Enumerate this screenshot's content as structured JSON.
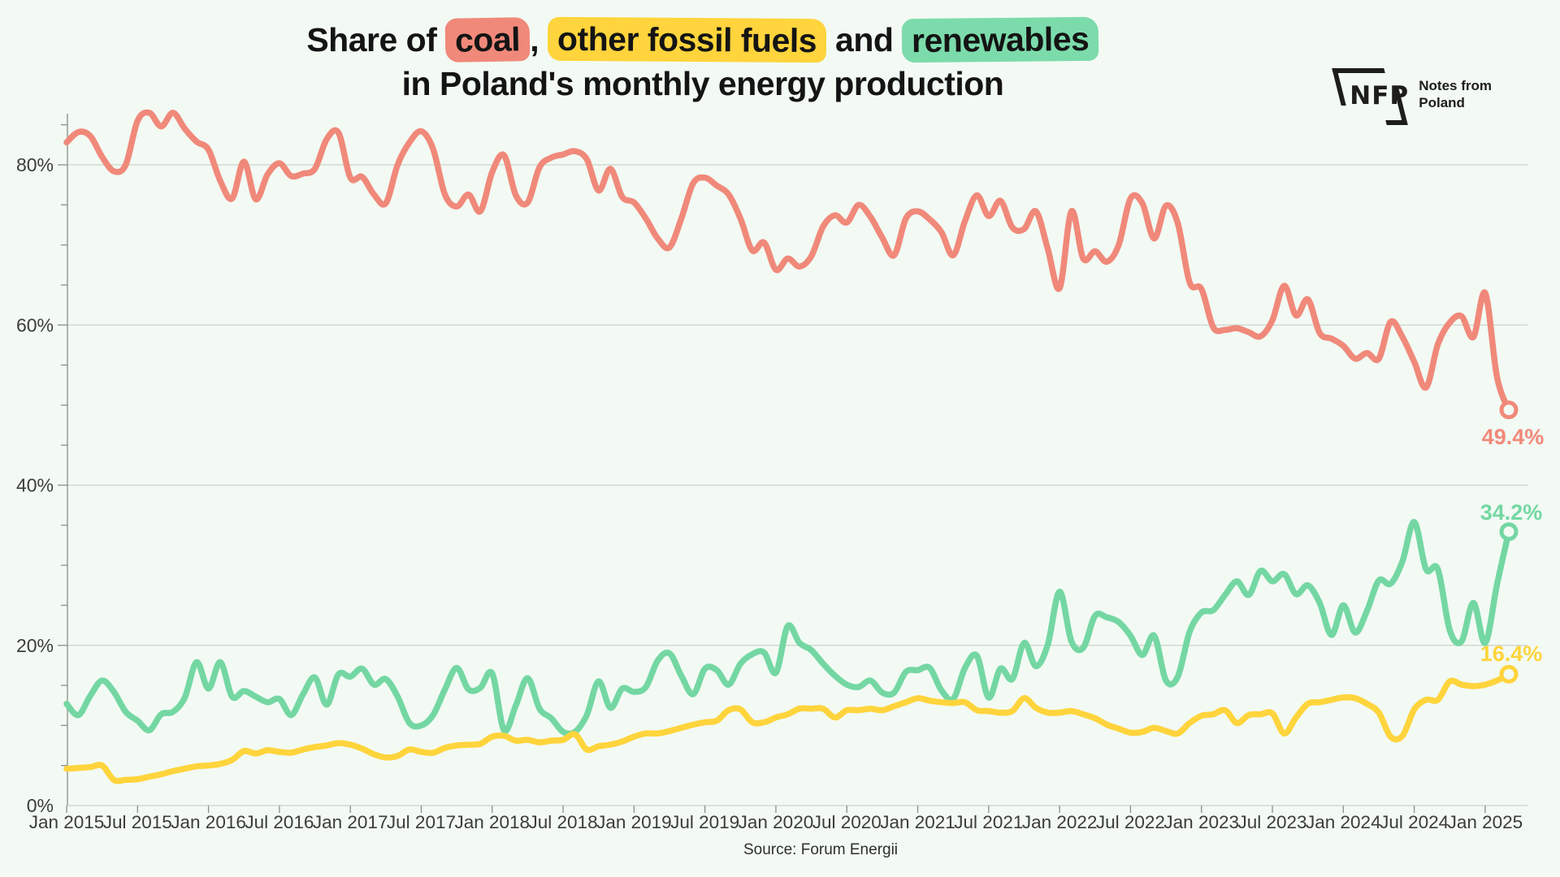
{
  "title": {
    "prefix": "Share of ",
    "coal": "coal",
    "comma": ", ",
    "fossil": "other fossil fuels",
    "and": " and ",
    "renewables": "renewables",
    "line2": "in Poland's monthly energy production"
  },
  "logo": {
    "abbr": "NFP",
    "line1": "Notes from",
    "line2": "Poland"
  },
  "source": "Source: Forum Energii",
  "colors": {
    "background": "#f2faf3",
    "gridline": "#cdd3cd",
    "axis": "#8a8f8a",
    "tick_text": "#3c3c3c",
    "coal": "#f0897a",
    "other_fossil": "#ffd43c",
    "renewables": "#74d7a3",
    "title_text": "#141414"
  },
  "axes": {
    "y_labels": [
      "0%",
      "20%",
      "40%",
      "60%",
      "80%"
    ],
    "y_label_values": [
      0,
      20,
      40,
      60,
      80
    ],
    "y_minor_step": 5,
    "y_axis_max": 85,
    "x_labels": [
      "Jan 2015",
      "Jul 2015",
      "Jan 2016",
      "Jul 2016",
      "Jan 2017",
      "Jul 2017",
      "Jan 2018",
      "Jul 2018",
      "Jan 2019",
      "Jul 2019",
      "Jan 2020",
      "Jul 2020",
      "Jan 2021",
      "Jul 2021",
      "Jan 2022",
      "Jul 2022",
      "Jan 2023",
      "Jul 2023",
      "Jan 2024",
      "Jul 2024",
      "Jan 2025"
    ],
    "x_label_month_step": 6
  },
  "chart_data": {
    "type": "line",
    "title": "Share of coal, other fossil fuels and renewables in Poland's monthly energy production",
    "x_unit": "month",
    "x_start": "Jan 2015",
    "x_end": "Mar 2025",
    "ylim": [
      0,
      85
    ],
    "grid": "horizontal",
    "legend_position": "title-highlights",
    "series": [
      {
        "name": "coal",
        "color": "#f0897a",
        "end_label": "49.4%",
        "values": [
          82.8,
          84.1,
          83.6,
          81.0,
          79.2,
          80.0,
          85.5,
          86.5,
          84.8,
          86.5,
          84.5,
          82.9,
          81.9,
          78.0,
          75.8,
          80.4,
          75.7,
          78.8,
          80.2,
          78.6,
          78.9,
          79.5,
          83.2,
          84.0,
          78.4,
          78.5,
          76.3,
          75.2,
          80.0,
          82.8,
          84.2,
          82.0,
          76.3,
          74.8,
          76.3,
          74.2,
          79.1,
          81.2,
          76.2,
          75.3,
          79.7,
          80.9,
          81.3,
          81.7,
          80.7,
          76.8,
          79.5,
          76.0,
          75.3,
          73.3,
          70.8,
          69.7,
          73.3,
          77.7,
          78.4,
          77.4,
          76.3,
          73.3,
          69.3,
          70.3,
          66.9,
          68.3,
          67.3,
          68.6,
          72.3,
          73.7,
          72.8,
          75.0,
          73.5,
          70.9,
          68.7,
          73.3,
          74.2,
          73.2,
          71.6,
          68.7,
          73.0,
          76.2,
          73.6,
          75.5,
          72.2,
          72.0,
          74.2,
          69.5,
          64.6,
          74.2,
          68.3,
          69.2,
          67.9,
          70.0,
          75.8,
          75.2,
          70.8,
          74.9,
          72.7,
          65.3,
          64.5,
          59.7,
          59.4,
          59.6,
          59.1,
          58.6,
          60.6,
          64.9,
          61.2,
          63.2,
          59.0,
          58.3,
          57.4,
          55.8,
          56.5,
          55.8,
          60.4,
          58.5,
          55.4,
          52.2,
          57.6,
          60.3,
          61.1,
          58.5,
          64.0,
          53.5,
          49.4
        ]
      },
      {
        "name": "other fossil fuels",
        "color": "#ffd43c",
        "end_label": "16.4%",
        "values": [
          4.6,
          4.7,
          4.8,
          5.0,
          3.2,
          3.2,
          3.3,
          3.6,
          3.9,
          4.3,
          4.6,
          4.9,
          5.0,
          5.2,
          5.7,
          6.8,
          6.5,
          6.9,
          6.7,
          6.6,
          7.0,
          7.3,
          7.5,
          7.8,
          7.6,
          7.1,
          6.4,
          6.0,
          6.2,
          7.0,
          6.7,
          6.6,
          7.2,
          7.5,
          7.6,
          7.7,
          8.6,
          8.7,
          8.1,
          8.2,
          7.9,
          8.1,
          8.2,
          8.9,
          7.0,
          7.4,
          7.6,
          8.0,
          8.6,
          9.0,
          9.0,
          9.3,
          9.7,
          10.1,
          10.4,
          10.6,
          11.9,
          12.0,
          10.4,
          10.4,
          11.0,
          11.4,
          12.1,
          12.1,
          12.1,
          11.0,
          11.9,
          11.9,
          12.1,
          11.9,
          12.4,
          12.9,
          13.4,
          13.1,
          12.9,
          12.8,
          12.9,
          11.9,
          11.8,
          11.6,
          11.8,
          13.4,
          12.2,
          11.6,
          11.6,
          11.8,
          11.4,
          10.9,
          10.1,
          9.6,
          9.1,
          9.2,
          9.7,
          9.3,
          9.0,
          10.3,
          11.2,
          11.4,
          11.9,
          10.3,
          11.3,
          11.4,
          11.5,
          9.0,
          11.0,
          12.7,
          12.9,
          13.2,
          13.5,
          13.4,
          12.7,
          11.6,
          8.6,
          8.7,
          12.0,
          13.2,
          13.2,
          15.5,
          15.1,
          14.9,
          15.1,
          15.6,
          16.4
        ]
      },
      {
        "name": "renewables",
        "color": "#74d7a3",
        "end_label": "34.2%",
        "values": [
          12.7,
          11.3,
          13.7,
          15.6,
          14.2,
          11.7,
          10.6,
          9.4,
          11.4,
          11.7,
          13.5,
          17.9,
          14.6,
          17.9,
          13.6,
          14.3,
          13.6,
          12.9,
          13.3,
          11.3,
          13.9,
          16.0,
          12.6,
          16.4,
          16.1,
          17.1,
          15.1,
          15.8,
          13.6,
          10.3,
          10.0,
          11.3,
          14.5,
          17.2,
          14.5,
          14.7,
          16.5,
          9.4,
          12.5,
          15.9,
          12.1,
          10.9,
          9.2,
          9.2,
          11.3,
          15.5,
          12.2,
          14.6,
          14.2,
          14.8,
          18.1,
          19.0,
          16.2,
          13.9,
          17.1,
          16.9,
          15.1,
          17.7,
          18.9,
          19.1,
          16.6,
          22.4,
          20.3,
          19.4,
          17.7,
          16.2,
          15.1,
          14.8,
          15.6,
          14.1,
          14.1,
          16.7,
          16.9,
          17.2,
          14.4,
          13.3,
          17.2,
          18.7,
          13.5,
          17.1,
          15.8,
          20.3,
          17.4,
          20.1,
          26.7,
          20.5,
          19.7,
          23.7,
          23.5,
          22.9,
          21.2,
          18.8,
          21.2,
          15.6,
          16.1,
          21.7,
          24.1,
          24.4,
          26.3,
          28.0,
          26.3,
          29.3,
          28.0,
          28.9,
          26.4,
          27.5,
          25.3,
          21.3,
          25.0,
          21.6,
          24.3,
          28.1,
          27.7,
          30.5,
          35.4,
          29.5,
          29.5,
          21.9,
          20.5,
          25.3,
          20.3,
          27.6,
          34.2
        ]
      }
    ]
  }
}
